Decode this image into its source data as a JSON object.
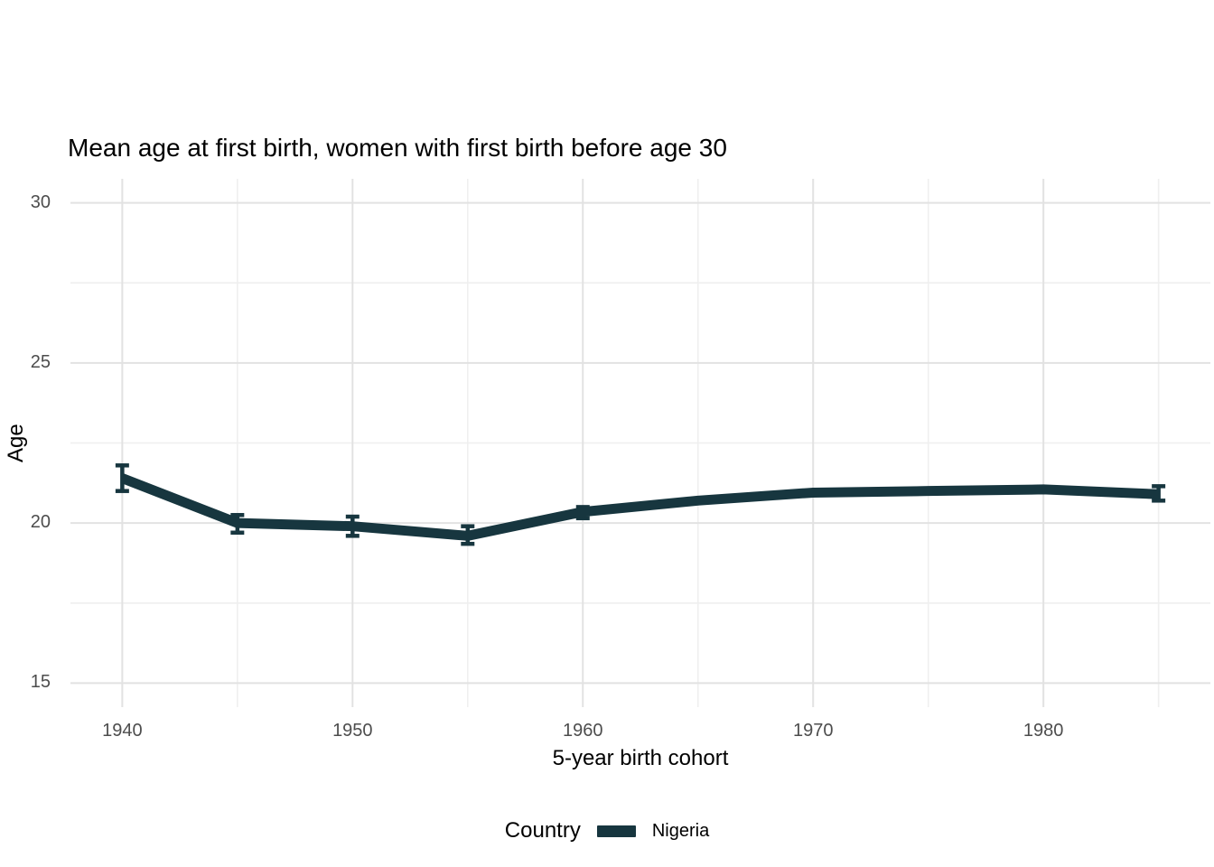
{
  "chart_data": {
    "type": "line",
    "title": "Mean age at first birth, women with first birth before age 30",
    "xlabel": "5-year birth cohort",
    "ylabel": "Age",
    "legend_title": "Country",
    "legend_position": "bottom",
    "grid": true,
    "x": [
      1940,
      1945,
      1950,
      1955,
      1960,
      1965,
      1970,
      1975,
      1980,
      1985
    ],
    "x_ticks": [
      1940,
      1950,
      1960,
      1970,
      1980
    ],
    "x_minor": [
      1945,
      1955,
      1965,
      1975,
      1985
    ],
    "y_ticks": [
      15,
      20,
      25,
      30
    ],
    "y_minor": [
      17.5,
      22.5,
      27.5
    ],
    "xlim": [
      1937.75,
      1987.25
    ],
    "ylim": [
      14.25,
      30.75
    ],
    "series": [
      {
        "name": "Nigeria",
        "color": "#17363f",
        "values": [
          21.4,
          20.0,
          19.9,
          19.6,
          20.35,
          20.7,
          20.95,
          21.0,
          21.05,
          20.9
        ],
        "ci_low": [
          21.0,
          19.7,
          19.6,
          19.35,
          20.15,
          null,
          null,
          null,
          null,
          20.7
        ],
        "ci_high": [
          21.8,
          20.25,
          20.2,
          19.9,
          20.5,
          null,
          null,
          null,
          null,
          21.15
        ]
      }
    ],
    "colors": {
      "grid_major": "#e2e2e2",
      "grid_minor": "#efefef",
      "tick_label": "#4d4d4d",
      "background": "#ffffff"
    }
  }
}
